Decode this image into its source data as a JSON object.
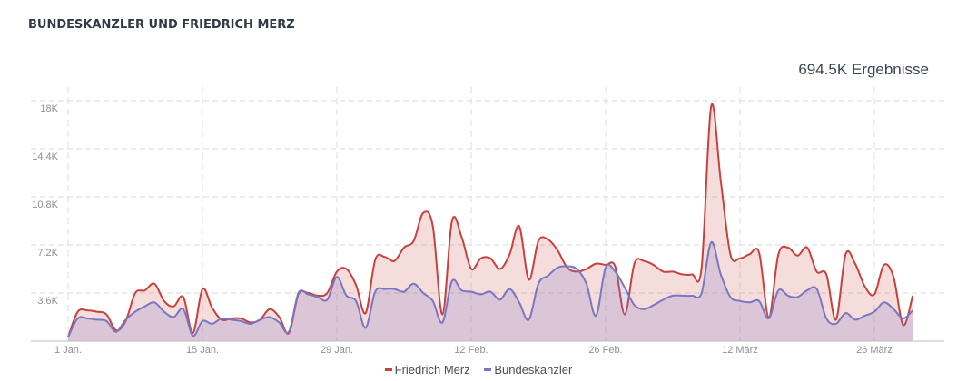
{
  "header": {
    "title": "BUNDESKANZLER UND FRIEDRICH MERZ"
  },
  "summary": {
    "total_results": "694.5K Ergebnisse"
  },
  "legend": [
    {
      "label": "Friedrich Merz",
      "color": "#c9413f"
    },
    {
      "label": "Bundeskanzler",
      "color": "#7b76c4"
    }
  ],
  "chart_data": {
    "type": "area",
    "title": "BUNDESKANZLER UND FRIEDRICH MERZ",
    "xlabel": "",
    "ylabel": "",
    "ylim": [
      0,
      18000
    ],
    "y_ticks": [
      "3.6K",
      "7.2K",
      "10.8K",
      "14.4K",
      "18K"
    ],
    "x_ticks": [
      "1 Jan.",
      "15 Jan.",
      "29 Jan.",
      "12 Feb.",
      "26 Feb.",
      "12 März",
      "26 März"
    ],
    "grid": true,
    "legend_position": "bottom",
    "x_start": "1 Jan.",
    "x_unit": "day",
    "series": [
      {
        "name": "Friedrich Merz",
        "color": "#c9413f",
        "values": [
          300,
          2200,
          2300,
          2200,
          2000,
          800,
          1500,
          3600,
          3800,
          4300,
          3000,
          2600,
          3300,
          600,
          3900,
          2500,
          1600,
          1700,
          1700,
          1400,
          1600,
          2400,
          1800,
          600,
          3500,
          3600,
          3400,
          3600,
          5200,
          5400,
          4200,
          2100,
          6100,
          6300,
          6000,
          7000,
          7500,
          9600,
          8600,
          2000,
          9000,
          7800,
          5400,
          6200,
          6200,
          5400,
          6500,
          8600,
          4600,
          7500,
          7600,
          6800,
          5500,
          5200,
          5400,
          5800,
          5700,
          5600,
          2000,
          5800,
          6000,
          5700,
          5200,
          5200,
          5000,
          5000,
          5500,
          17600,
          12000,
          6500,
          6200,
          6500,
          6600,
          1800,
          6500,
          7000,
          6400,
          7000,
          5200,
          5000,
          1600,
          6500,
          5800,
          4100,
          3500,
          5700,
          4800,
          1200,
          3400
        ]
      },
      {
        "name": "Bundeskanzler",
        "color": "#7b76c4",
        "values": [
          300,
          1700,
          1700,
          1600,
          1500,
          700,
          1600,
          2200,
          2600,
          2900,
          2200,
          1800,
          2400,
          400,
          1500,
          1300,
          1700,
          1600,
          1500,
          1300,
          1600,
          1800,
          1400,
          700,
          3600,
          3500,
          3300,
          3100,
          4800,
          3400,
          3000,
          1000,
          3700,
          3900,
          3900,
          3700,
          4300,
          3600,
          3000,
          1400,
          4500,
          3800,
          3700,
          3500,
          3700,
          3100,
          3900,
          2900,
          1600,
          4300,
          4900,
          5500,
          5600,
          5400,
          4300,
          1900,
          5500,
          5200,
          4000,
          2700,
          2400,
          2700,
          3100,
          3400,
          3400,
          3400,
          3600,
          7400,
          5000,
          3300,
          3000,
          2900,
          3000,
          1700,
          3800,
          3400,
          3300,
          3800,
          3900,
          1700,
          1300,
          2100,
          1600,
          1900,
          2200,
          2900,
          2400,
          1700,
          2300
        ]
      }
    ]
  }
}
